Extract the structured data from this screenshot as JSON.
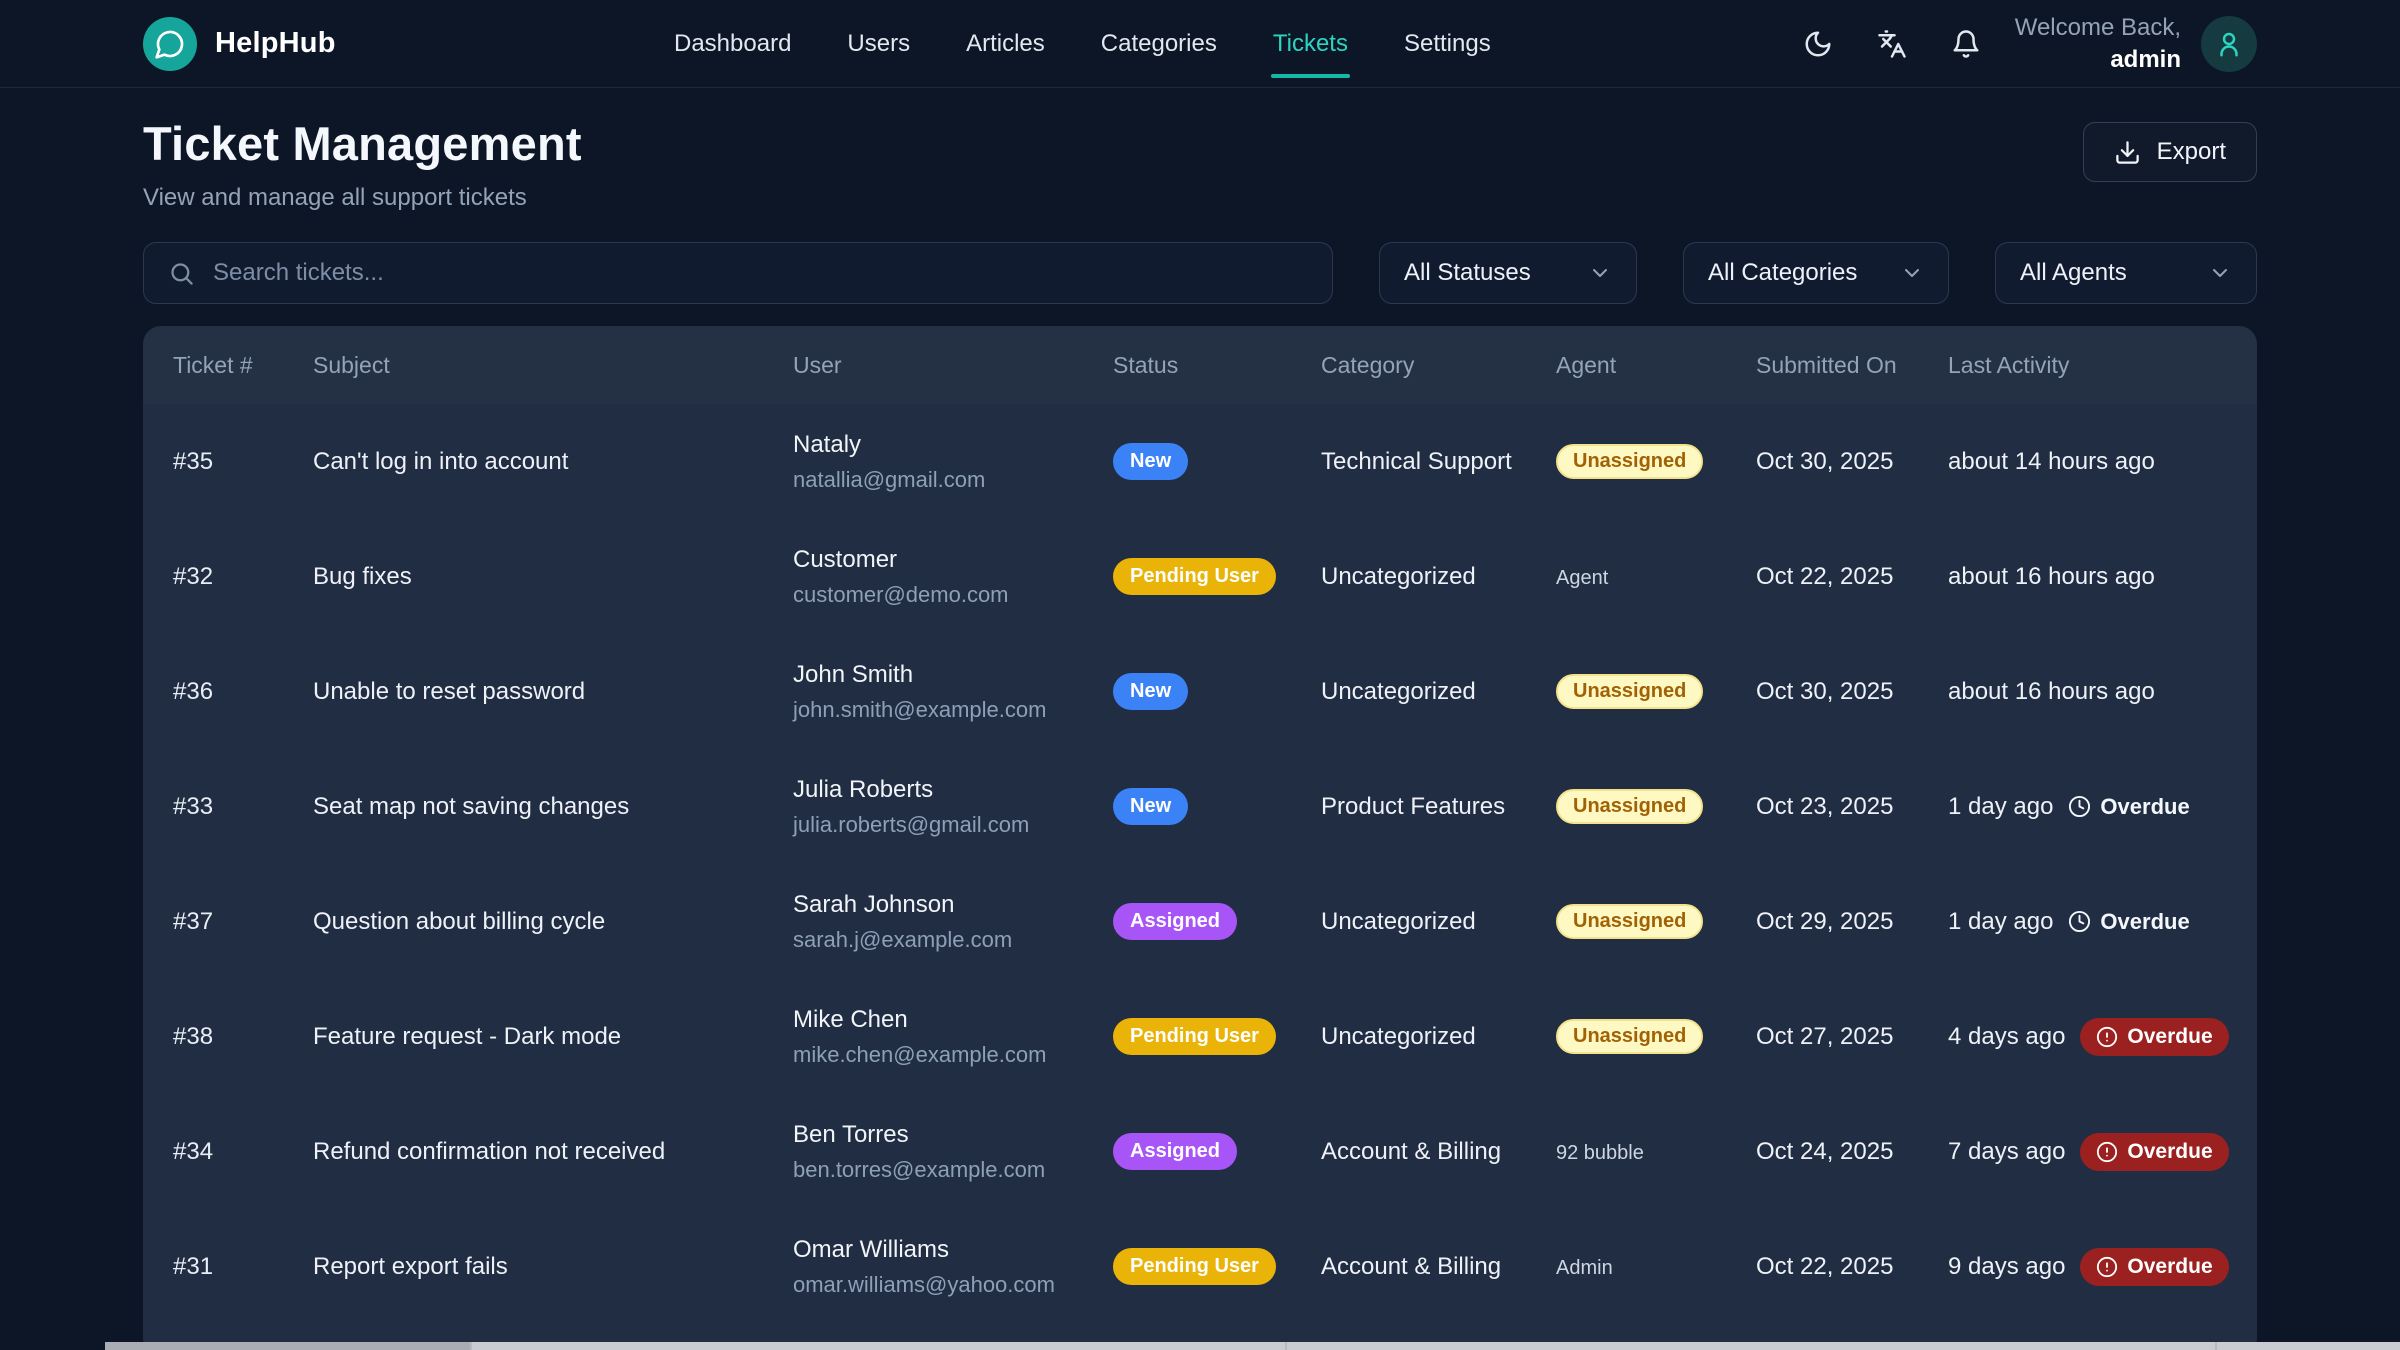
{
  "colors": {
    "accent_teal": "#2dd4bf",
    "logo_teal": "#16a59b",
    "badge_new": "#3b82f6",
    "badge_pending_user": "#eab308",
    "badge_assigned": "#a855f7",
    "badge_unassigned_bg": "#fef9c3",
    "badge_unassigned_text": "#a16207",
    "overdue_red": "#9b2121",
    "card_bg": "#212d42",
    "page_bg": "#0d1626"
  },
  "brand": {
    "name": "HelpHub"
  },
  "nav": {
    "items": [
      {
        "label": "Dashboard",
        "active": false
      },
      {
        "label": "Users",
        "active": false
      },
      {
        "label": "Articles",
        "active": false
      },
      {
        "label": "Categories",
        "active": false
      },
      {
        "label": "Tickets",
        "active": true
      },
      {
        "label": "Settings",
        "active": false
      }
    ]
  },
  "user_menu": {
    "welcome": "Welcome Back,",
    "username": "admin"
  },
  "page": {
    "title": "Ticket Management",
    "subtitle": "View and manage all support tickets",
    "export_label": "Export"
  },
  "filters": {
    "search_placeholder": "Search tickets...",
    "status_filter": "All Statuses",
    "category_filter": "All Categories",
    "agent_filter": "All Agents"
  },
  "table": {
    "columns": [
      "Ticket #",
      "Subject",
      "User",
      "Status",
      "Category",
      "Agent",
      "Submitted On",
      "Last Activity"
    ],
    "rows": [
      {
        "ticket": "#35",
        "subject": "Can't log in into account",
        "user_name": "Nataly",
        "user_email": "natallia@gmail.com",
        "status": "New",
        "status_variant": "new",
        "category": "Technical Support",
        "agent": "Unassigned",
        "agent_variant": "badge",
        "submitted": "Oct 30, 2025",
        "last_activity": "about 14 hours ago",
        "overdue": "none",
        "overdue_label": ""
      },
      {
        "ticket": "#32",
        "subject": "Bug fixes",
        "user_name": "Customer",
        "user_email": "customer@demo.com",
        "status": "Pending User",
        "status_variant": "pending",
        "category": "Uncategorized",
        "agent": "Agent",
        "agent_variant": "text",
        "submitted": "Oct 22, 2025",
        "last_activity": "about 16 hours ago",
        "overdue": "none",
        "overdue_label": ""
      },
      {
        "ticket": "#36",
        "subject": "Unable to reset password",
        "user_name": "John Smith",
        "user_email": "john.smith@example.com",
        "status": "New",
        "status_variant": "new",
        "category": "Uncategorized",
        "agent": "Unassigned",
        "agent_variant": "badge",
        "submitted": "Oct 30, 2025",
        "last_activity": "about 16 hours ago",
        "overdue": "none",
        "overdue_label": ""
      },
      {
        "ticket": "#33",
        "subject": "Seat map not saving changes",
        "user_name": "Julia Roberts",
        "user_email": "julia.roberts@gmail.com",
        "status": "New",
        "status_variant": "new",
        "category": "Product Features",
        "agent": "Unassigned",
        "agent_variant": "badge",
        "submitted": "Oct 23, 2025",
        "last_activity": "1 day ago",
        "overdue": "plain",
        "overdue_label": "Overdue"
      },
      {
        "ticket": "#37",
        "subject": "Question about billing cycle",
        "user_name": "Sarah Johnson",
        "user_email": "sarah.j@example.com",
        "status": "Assigned",
        "status_variant": "assigned",
        "category": "Uncategorized",
        "agent": "Unassigned",
        "agent_variant": "badge",
        "submitted": "Oct 29, 2025",
        "last_activity": "1 day ago",
        "overdue": "plain",
        "overdue_label": "Overdue"
      },
      {
        "ticket": "#38",
        "subject": "Feature request - Dark mode",
        "user_name": "Mike Chen",
        "user_email": "mike.chen@example.com",
        "status": "Pending User",
        "status_variant": "pending",
        "category": "Uncategorized",
        "agent": "Unassigned",
        "agent_variant": "badge",
        "submitted": "Oct 27, 2025",
        "last_activity": "4 days ago",
        "overdue": "red",
        "overdue_label": "Overdue"
      },
      {
        "ticket": "#34",
        "subject": "Refund confirmation not received",
        "user_name": "Ben Torres",
        "user_email": "ben.torres@example.com",
        "status": "Assigned",
        "status_variant": "assigned",
        "category": "Account & Billing",
        "agent": "92 bubble",
        "agent_variant": "text",
        "submitted": "Oct 24, 2025",
        "last_activity": "7 days ago",
        "overdue": "red",
        "overdue_label": "Overdue"
      },
      {
        "ticket": "#31",
        "subject": "Report export fails",
        "user_name": "Omar Williams",
        "user_email": "omar.williams@yahoo.com",
        "status": "Pending User",
        "status_variant": "pending",
        "category": "Account & Billing",
        "agent": "Admin",
        "agent_variant": "text",
        "submitted": "Oct 22, 2025",
        "last_activity": "9 days ago",
        "overdue": "red",
        "overdue_label": "Overdue"
      }
    ]
  }
}
